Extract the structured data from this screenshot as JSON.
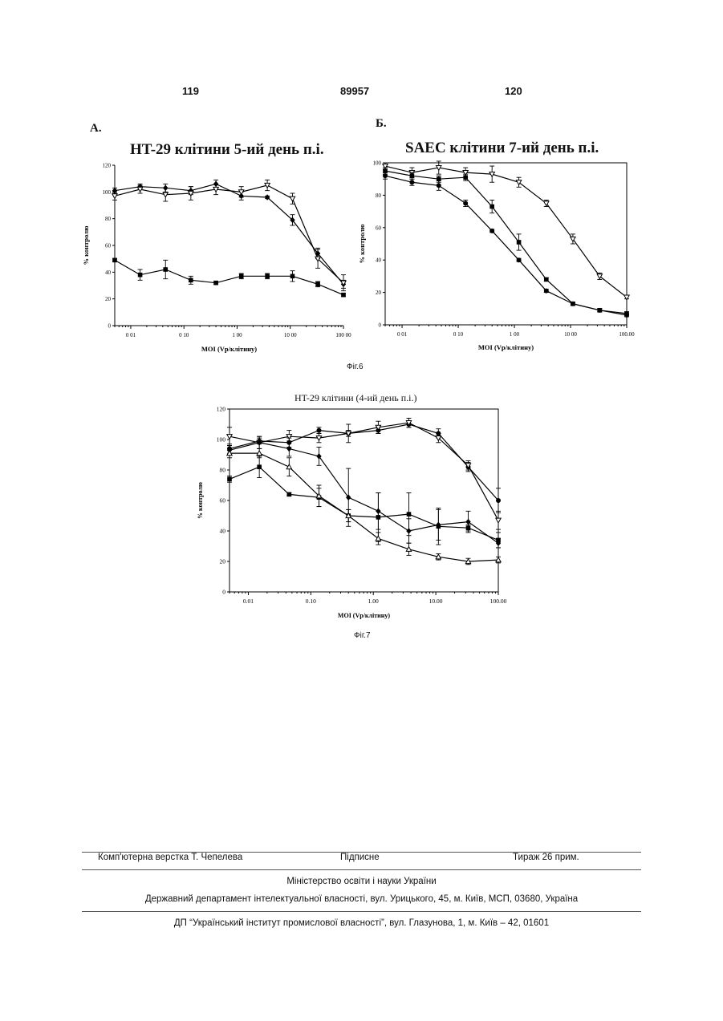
{
  "header": {
    "page_left": "119",
    "doc_number": "89957",
    "page_right": "120"
  },
  "figures": [
    {
      "caption": "Фіг.6",
      "panels": [
        {
          "label": "А.",
          "title": "HT-29 клітини 5-ий день п.і."
        },
        {
          "label": "Б.",
          "title": "SAEC клітини 7-ий день п.і."
        }
      ]
    },
    {
      "caption": "Фіг.7",
      "panels": [
        {
          "label": "",
          "title": "HT-29 клітини (4-ий день п.і.)"
        }
      ]
    }
  ],
  "chart_data": [
    {
      "type": "line",
      "title": "HT-29 клітини 5-ий день п.і.",
      "xlabel": "MOI (Vp/клітину)",
      "ylabel": "% контролю",
      "x_scale": "log",
      "xlim": [
        0.005,
        100
      ],
      "ylim": [
        0,
        120
      ],
      "xticks": [
        0.01,
        0.1,
        1,
        10,
        100
      ],
      "xtick_labels": [
        "0 01",
        "0 10",
        "1 00",
        "10 00",
        "100 00"
      ],
      "yticks": [
        0,
        20,
        40,
        60,
        80,
        100,
        120
      ],
      "ytick_labels": [
        "0",
        "20",
        "40",
        "60",
        "80",
        "100",
        "120"
      ],
      "grid": false,
      "series": [
        {
          "marker": "diamond",
          "x": [
            0.005,
            0.015,
            0.045,
            0.135,
            0.4,
            1.2,
            3.7,
            11,
            33,
            100
          ],
          "y": [
            101,
            104,
            103,
            101,
            106,
            97,
            96,
            79,
            54,
            31
          ],
          "err": [
            2,
            2,
            3,
            3,
            3,
            3,
            1,
            4,
            4,
            3
          ]
        },
        {
          "marker": "triangle-down-open",
          "x": [
            0.005,
            0.015,
            0.045,
            0.135,
            0.4,
            1.2,
            3.7,
            11,
            33,
            100
          ],
          "y": [
            97,
            102,
            98,
            99,
            102,
            100,
            105,
            95,
            50,
            32
          ],
          "err": [
            3,
            3,
            5,
            5,
            4,
            4,
            4,
            4,
            7,
            6
          ]
        },
        {
          "marker": "square",
          "x": [
            0.005,
            0.015,
            0.045,
            0.135,
            0.4,
            1.2,
            3.7,
            11,
            33,
            100
          ],
          "y": [
            49,
            38,
            42,
            34,
            32,
            37,
            37,
            37,
            31,
            23
          ],
          "err": [
            1,
            4,
            7,
            3,
            1,
            2,
            2,
            4,
            2,
            1
          ]
        }
      ]
    },
    {
      "type": "line",
      "title": "SAEC клітини 7-ий день п.і.",
      "xlabel": "MOI (Vp/клітину)",
      "ylabel": "% контролю",
      "x_scale": "log",
      "xlim": [
        0.005,
        100
      ],
      "ylim": [
        0,
        100
      ],
      "xticks": [
        0.01,
        0.1,
        1,
        10,
        100
      ],
      "xtick_labels": [
        "0 01",
        "0 10",
        "1 00",
        "10 00",
        "100.00"
      ],
      "yticks": [
        0,
        20,
        40,
        60,
        80,
        100
      ],
      "ytick_labels": [
        "0",
        "20",
        "40",
        "60",
        "80",
        "100"
      ],
      "grid": false,
      "series": [
        {
          "marker": "triangle-down-open",
          "x": [
            0.005,
            0.015,
            0.045,
            0.135,
            0.4,
            1.2,
            3.7,
            11,
            33,
            100
          ],
          "y": [
            98,
            94,
            97,
            94,
            93,
            88,
            75,
            53,
            30,
            17
          ],
          "err": [
            2,
            3,
            4,
            3,
            5,
            3,
            2,
            3,
            2,
            1
          ]
        },
        {
          "marker": "square",
          "x": [
            0.005,
            0.015,
            0.045,
            0.135,
            0.4,
            1.2,
            3.7,
            11,
            33,
            100
          ],
          "y": [
            95,
            92,
            90,
            91,
            73,
            51,
            28,
            13,
            9,
            7
          ],
          "err": [
            2,
            2,
            2,
            2,
            4,
            5,
            1,
            1,
            1,
            1
          ]
        },
        {
          "marker": "circle",
          "x": [
            0.005,
            0.015,
            0.045,
            0.135,
            0.4,
            1.2,
            3.7,
            11,
            33,
            100
          ],
          "y": [
            92,
            88,
            86,
            75,
            58,
            40,
            21,
            13,
            9,
            6
          ],
          "err": [
            2,
            2,
            3,
            2,
            1,
            1,
            1,
            1,
            1,
            1
          ]
        }
      ]
    },
    {
      "type": "line",
      "title": "HT-29 клітини (4-ий день п.і.)",
      "xlabel": "MOI (Vp/клітину)",
      "ylabel": "% контролю",
      "x_scale": "log",
      "xlim": [
        0.005,
        100
      ],
      "ylim": [
        0,
        120
      ],
      "xticks": [
        0.01,
        0.1,
        1,
        10,
        100
      ],
      "xtick_labels": [
        "0.01",
        "0.10",
        "1.00",
        "10.00",
        "100.00"
      ],
      "yticks": [
        0,
        20,
        40,
        60,
        80,
        100,
        120
      ],
      "ytick_labels": [
        "0",
        "20",
        "40",
        "60",
        "80",
        "100",
        "120"
      ],
      "grid": false,
      "series": [
        {
          "marker": "circle",
          "x": [
            0.005,
            0.015,
            0.045,
            0.135,
            0.4,
            1.2,
            3.7,
            11,
            33,
            100
          ],
          "y": [
            94,
            99,
            98,
            106,
            104,
            106,
            110,
            104,
            82,
            60
          ],
          "err": [
            3,
            2,
            3,
            2,
            2,
            2,
            2,
            3,
            3,
            8
          ]
        },
        {
          "marker": "triangle-down-open",
          "x": [
            0.005,
            0.015,
            0.045,
            0.135,
            0.4,
            1.2,
            3.7,
            11,
            33,
            100
          ],
          "y": [
            102,
            98,
            102,
            101,
            104,
            108,
            111,
            101,
            83,
            47
          ],
          "err": [
            6,
            4,
            4,
            3,
            6,
            4,
            3,
            3,
            3,
            6
          ]
        },
        {
          "marker": "diamond",
          "x": [
            0.005,
            0.015,
            0.045,
            0.135,
            0.4,
            1.2,
            3.7,
            11,
            33,
            100
          ],
          "y": [
            93,
            98,
            94,
            89,
            62,
            53,
            40,
            44,
            46,
            32
          ],
          "err": [
            3,
            4,
            5,
            6,
            19,
            12,
            8,
            10,
            7,
            3
          ]
        },
        {
          "marker": "square",
          "x": [
            0.005,
            0.015,
            0.045,
            0.135,
            0.4,
            1.2,
            3.7,
            11,
            33,
            100
          ],
          "y": [
            74,
            82,
            64,
            62,
            50,
            49,
            51,
            43,
            42,
            34
          ],
          "err": [
            2,
            7,
            1,
            6,
            4,
            16,
            14,
            12,
            2,
            5
          ]
        },
        {
          "marker": "triangle-up-open",
          "x": [
            0.005,
            0.015,
            0.045,
            0.135,
            0.4,
            1.2,
            3.7,
            11,
            33,
            100
          ],
          "y": [
            91,
            91,
            82,
            63,
            50,
            35,
            28,
            23,
            20,
            21
          ],
          "err": [
            3,
            3,
            6,
            7,
            4,
            4,
            4,
            2,
            2,
            2
          ]
        }
      ]
    }
  ],
  "footer": {
    "left": "Комп'ютерна верстка Т. Чепелева",
    "middle": "Підписне",
    "right": "Тираж 26 прим.",
    "ministry": "Міністерство освіти і науки України",
    "department": "Державний департамент інтелектуальної власності, вул. Урицького, 45, м. Київ, МСП, 03680, Україна",
    "institute": "ДП “Український інститут промислової власності”, вул. Глазунова, 1, м. Київ – 42, 01601"
  }
}
